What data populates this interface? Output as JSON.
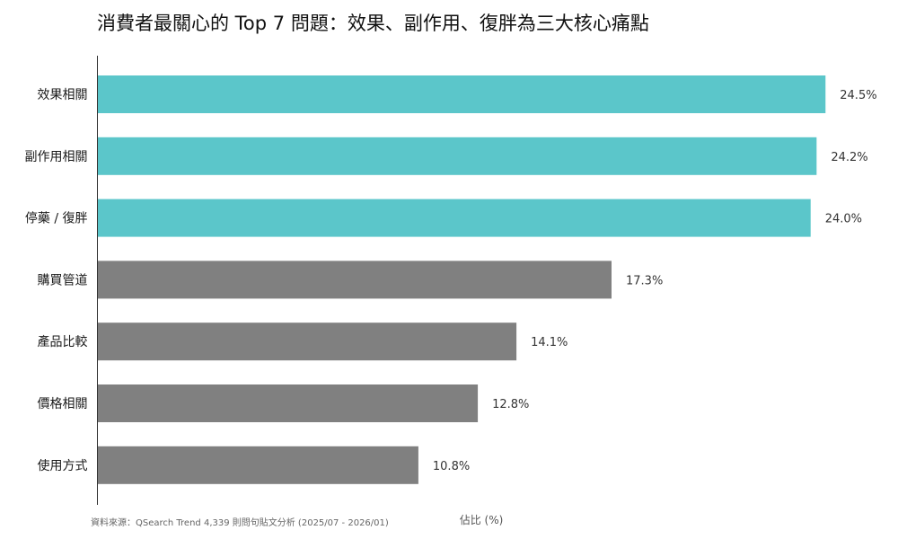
{
  "source_note": "資料來源：QSearch Trend 4,339 則問句貼文分析 (2025/07 - 2026/01)",
  "colors": {
    "highlight": "#5bc6ca",
    "default": "#808080",
    "axis": "#333333"
  },
  "chart_data": {
    "type": "bar",
    "orientation": "horizontal",
    "title": "消費者最關心的 Top 7 問題：效果、副作用、復胖為三大核心痛點",
    "xlabel": "佔比 (%)",
    "ylabel": "",
    "xlim": [
      0,
      27
    ],
    "grid": false,
    "categories": [
      "效果相關",
      "副作用相關",
      "停藥 / 復胖",
      "購買管道",
      "產品比較",
      "價格相關",
      "使用方式"
    ],
    "values": [
      24.5,
      24.2,
      24.0,
      17.3,
      14.1,
      12.8,
      10.8
    ],
    "value_labels": [
      "24.5%",
      "24.2%",
      "24.0%",
      "17.3%",
      "14.1%",
      "12.8%",
      "10.8%"
    ],
    "highlighted": [
      true,
      true,
      true,
      false,
      false,
      false,
      false
    ]
  }
}
